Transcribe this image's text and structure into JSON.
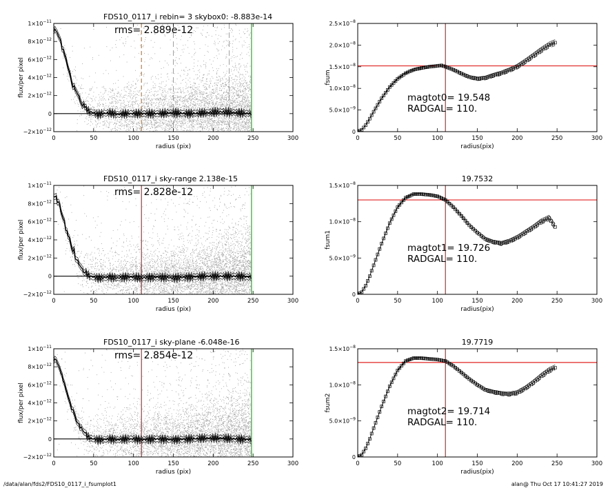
{
  "footer": {
    "left": "/data/alan/fds2/FDS10_0117_i_fsumplot1",
    "right": "alan@  Thu Oct 17 10:41:27 2019"
  },
  "colors": {
    "scatter": "#9a9a9a",
    "profile": "#000000",
    "radgal": "#e02020",
    "edge": "#22dd22",
    "dashed": "#e08a30"
  },
  "chart_data": [
    {
      "type": "scatter",
      "title": "FDS10_0117_i rebin= 3    skybox0: -8.883e-14",
      "annotation": "rms= 2.889e-12",
      "xlabel": "radius (pix)",
      "ylabel": "flux/per pixel",
      "xlim": [
        0,
        300
      ],
      "ylim": [
        -2e-12,
        1e-11
      ],
      "xticks": [
        "0",
        "50",
        "100",
        "150",
        "200",
        "250",
        "300"
      ],
      "yticks": [
        {
          "base": "−2×10",
          "exp": "−12",
          "value": -2e-12
        },
        {
          "base": "0",
          "exp": "",
          "value": 0
        },
        {
          "base": "2×10",
          "exp": "−12",
          "value": 2e-12
        },
        {
          "base": "4×10",
          "exp": "−12",
          "value": 4e-12
        },
        {
          "base": "6×10",
          "exp": "−12",
          "value": 6e-12
        },
        {
          "base": "8×10",
          "exp": "−12",
          "value": 8e-12
        },
        {
          "base": "1×10",
          "exp": "−11",
          "value": 1e-11
        }
      ],
      "vlines": [
        {
          "x": 110,
          "style": "dashed-orange"
        },
        {
          "x": 150,
          "style": "dashed-gray"
        },
        {
          "x": 220,
          "style": "dashed-gray"
        },
        {
          "x": 248,
          "style": "green"
        }
      ],
      "profile": {
        "x": [
          0,
          3,
          6,
          9,
          12,
          15,
          18,
          21,
          24,
          27,
          30,
          35,
          40,
          45,
          50,
          55,
          60,
          70,
          80,
          90,
          100,
          110,
          130,
          150,
          170,
          190,
          210,
          230,
          248
        ],
        "y": [
          9.2e-12,
          9.3e-12,
          8.6e-12,
          7.9e-12,
          6.9e-12,
          5.9e-12,
          5e-12,
          4.1e-12,
          3.3e-12,
          2.6e-12,
          2e-12,
          1.2e-12,
          6e-13,
          2e-13,
          1e-13,
          -1e-13,
          0,
          1e-13,
          -1e-13,
          0,
          0,
          0,
          0,
          1e-13,
          0,
          1e-13,
          2e-13,
          1e-13,
          0
        ]
      },
      "envelope_delta": 3e-13
    },
    {
      "type": "line",
      "title": "",
      "annotation_lines": [
        "magtot0=  19.548",
        "RADGAL=    110."
      ],
      "xlabel": "radius(pix)",
      "ylabel": "fsum",
      "xlim": [
        0,
        300
      ],
      "ylim": [
        0,
        2.5e-08
      ],
      "xticks": [
        "0",
        "50",
        "100",
        "150",
        "200",
        "250",
        "300"
      ],
      "yticks": [
        {
          "base": "0",
          "exp": "",
          "value": 0
        },
        {
          "base": "5.0×10",
          "exp": "−9",
          "value": 5e-09
        },
        {
          "base": "1.0×10",
          "exp": "−8",
          "value": 1e-08
        },
        {
          "base": "1.5×10",
          "exp": "−8",
          "value": 1.5e-08
        },
        {
          "base": "2.0×10",
          "exp": "−8",
          "value": 2e-08
        },
        {
          "base": "2.5×10",
          "exp": "−8",
          "value": 2.5e-08
        }
      ],
      "vline_x": 110,
      "hline_y": 1.52e-08,
      "series_x": [
        0,
        5,
        10,
        15,
        20,
        25,
        30,
        40,
        50,
        60,
        70,
        80,
        90,
        100,
        105,
        110,
        120,
        130,
        140,
        150,
        160,
        170,
        180,
        190,
        200,
        210,
        220,
        230,
        240,
        248
      ],
      "series_y": [
        0,
        4e-10,
        1.5e-09,
        3e-09,
        4.6e-09,
        6.2e-09,
        7.7e-09,
        1.03e-08,
        1.22e-08,
        1.35e-08,
        1.43e-08,
        1.47e-08,
        1.5e-08,
        1.52e-08,
        1.53e-08,
        1.5e-08,
        1.43e-08,
        1.34e-08,
        1.26e-08,
        1.22e-08,
        1.24e-08,
        1.3e-08,
        1.35e-08,
        1.42e-08,
        1.5e-08,
        1.62e-08,
        1.75e-08,
        1.88e-08,
        2e-08,
        2.06e-08
      ],
      "band_delta": 7e-10
    },
    {
      "type": "scatter",
      "title": "FDS10_0117_i sky-range  2.138e-15",
      "annotation": "rms= 2.828e-12",
      "xlabel": "radius (pix)",
      "ylabel": "flux/per pixel",
      "xlim": [
        0,
        300
      ],
      "ylim": [
        -2e-12,
        1e-11
      ],
      "xticks": [
        "0",
        "50",
        "100",
        "150",
        "200",
        "250",
        "300"
      ],
      "yticks": [
        {
          "base": "−2×10",
          "exp": "−12",
          "value": -2e-12
        },
        {
          "base": "0",
          "exp": "",
          "value": 0
        },
        {
          "base": "2×10",
          "exp": "−12",
          "value": 2e-12
        },
        {
          "base": "4×10",
          "exp": "−12",
          "value": 4e-12
        },
        {
          "base": "6×10",
          "exp": "−12",
          "value": 6e-12
        },
        {
          "base": "8×10",
          "exp": "−12",
          "value": 8e-12
        },
        {
          "base": "1×10",
          "exp": "−11",
          "value": 1e-11
        }
      ],
      "vlines": [
        {
          "x": 110,
          "style": "red"
        },
        {
          "x": 248,
          "style": "green"
        }
      ],
      "profile": {
        "x": [
          0,
          3,
          6,
          9,
          12,
          15,
          18,
          21,
          24,
          27,
          30,
          35,
          40,
          45,
          50,
          55,
          60,
          70,
          80,
          90,
          100,
          110,
          130,
          150,
          170,
          190,
          210,
          230,
          248
        ],
        "y": [
          8.6e-12,
          8.8e-12,
          8.1e-12,
          7.3e-12,
          6.4e-12,
          5.4e-12,
          4.5e-12,
          3.6e-12,
          2.9e-12,
          2.2e-12,
          1.6e-12,
          9e-13,
          4e-13,
          0,
          -1e-13,
          -2e-13,
          -2e-13,
          -1e-13,
          -2e-13,
          -1e-13,
          -1e-13,
          -2e-13,
          -1e-13,
          -2e-13,
          -1e-13,
          0,
          0,
          0,
          -1e-13
        ]
      },
      "envelope_delta": 3e-13
    },
    {
      "type": "line",
      "title": "19.7532",
      "annotation_lines": [
        "magtot1=  19.726",
        "RADGAL=    110."
      ],
      "xlabel": "radius(pix)",
      "ylabel": "fsum1",
      "xlim": [
        0,
        300
      ],
      "ylim": [
        0,
        1.5e-08
      ],
      "xticks": [
        "0",
        "50",
        "100",
        "150",
        "200",
        "250",
        "300"
      ],
      "yticks": [
        {
          "base": "0",
          "exp": "",
          "value": 0
        },
        {
          "base": "5.0×10",
          "exp": "−9",
          "value": 5e-09
        },
        {
          "base": "1.0×10",
          "exp": "−8",
          "value": 1e-08
        },
        {
          "base": "1.5×10",
          "exp": "−8",
          "value": 1.5e-08
        }
      ],
      "vline_x": 110,
      "hline_y": 1.3e-08,
      "series_x": [
        0,
        5,
        10,
        15,
        20,
        25,
        30,
        40,
        50,
        60,
        70,
        80,
        90,
        100,
        110,
        120,
        130,
        140,
        150,
        160,
        170,
        180,
        190,
        200,
        210,
        220,
        230,
        240,
        248
      ],
      "series_y": [
        0,
        3e-10,
        1.2e-09,
        2.5e-09,
        4e-09,
        5.5e-09,
        7e-09,
        9.8e-09,
        1.2e-08,
        1.33e-08,
        1.38e-08,
        1.38e-08,
        1.37e-08,
        1.35e-08,
        1.3e-08,
        1.2e-08,
        1.08e-08,
        9.5e-09,
        8.5e-09,
        7.6e-09,
        7.2e-09,
        7e-09,
        7.3e-09,
        7.8e-09,
        8.5e-09,
        9.2e-09,
        1e-08,
        1.05e-08,
        9.2e-09
      ],
      "band_delta": 4e-10
    },
    {
      "type": "scatter",
      "title": "FDS10_0117_i sky-plane -6.048e-16",
      "annotation": "rms= 2.854e-12",
      "xlabel": "radius (pix)",
      "ylabel": "flux/per pixel",
      "xlim": [
        0,
        300
      ],
      "ylim": [
        -2e-12,
        1e-11
      ],
      "xticks": [
        "0",
        "50",
        "100",
        "150",
        "200",
        "250",
        "300"
      ],
      "yticks": [
        {
          "base": "−2×10",
          "exp": "−12",
          "value": -2e-12
        },
        {
          "base": "0",
          "exp": "",
          "value": 0
        },
        {
          "base": "2×10",
          "exp": "−12",
          "value": 2e-12
        },
        {
          "base": "4×10",
          "exp": "−12",
          "value": 4e-12
        },
        {
          "base": "6×10",
          "exp": "−12",
          "value": 6e-12
        },
        {
          "base": "8×10",
          "exp": "−12",
          "value": 8e-12
        },
        {
          "base": "1×10",
          "exp": "−11",
          "value": 1e-11
        }
      ],
      "vlines": [
        {
          "x": 110,
          "style": "red"
        },
        {
          "x": 248,
          "style": "green"
        }
      ],
      "profile": {
        "x": [
          0,
          3,
          6,
          9,
          12,
          15,
          18,
          21,
          24,
          27,
          30,
          35,
          40,
          45,
          50,
          55,
          60,
          70,
          80,
          90,
          100,
          110,
          130,
          150,
          170,
          190,
          210,
          230,
          248
        ],
        "y": [
          8.7e-12,
          8.9e-12,
          8.2e-12,
          7.4e-12,
          6.5e-12,
          5.5e-12,
          4.6e-12,
          3.7e-12,
          3e-12,
          2.3e-12,
          1.7e-12,
          1e-12,
          5e-13,
          1e-13,
          0,
          -1e-13,
          -1e-13,
          0,
          -1e-13,
          0,
          0,
          -1e-13,
          0,
          -1e-13,
          0,
          1e-13,
          1e-13,
          0,
          -1e-13
        ]
      },
      "envelope_delta": 3e-13
    },
    {
      "type": "line",
      "title": "19.7719",
      "annotation_lines": [
        "magtot2=  19.714",
        "RADGAL=    110."
      ],
      "xlabel": "radius(pix)",
      "ylabel": "fsum2",
      "xlim": [
        0,
        300
      ],
      "ylim": [
        0,
        1.5e-08
      ],
      "xticks": [
        "0",
        "50",
        "100",
        "150",
        "200",
        "250",
        "300"
      ],
      "yticks": [
        {
          "base": "0",
          "exp": "",
          "value": 0
        },
        {
          "base": "5.0×10",
          "exp": "−9",
          "value": 5e-09
        },
        {
          "base": "1.0×10",
          "exp": "−8",
          "value": 1e-08
        },
        {
          "base": "1.5×10",
          "exp": "−8",
          "value": 1.5e-08
        }
      ],
      "vline_x": 110,
      "hline_y": 1.31e-08,
      "series_x": [
        0,
        5,
        10,
        15,
        20,
        25,
        30,
        40,
        50,
        60,
        70,
        80,
        90,
        100,
        110,
        120,
        130,
        140,
        150,
        160,
        170,
        180,
        190,
        200,
        210,
        220,
        230,
        240,
        248
      ],
      "series_y": [
        0,
        3e-10,
        1.2e-09,
        2.5e-09,
        4e-09,
        5.5e-09,
        7e-09,
        9.8e-09,
        1.2e-08,
        1.33e-08,
        1.37e-08,
        1.37e-08,
        1.36e-08,
        1.35e-08,
        1.33e-08,
        1.26e-08,
        1.17e-08,
        1.08e-08,
        1e-08,
        9.3e-09,
        9e-09,
        8.8e-09,
        8.7e-09,
        8.9e-09,
        9.5e-09,
        1.03e-08,
        1.12e-08,
        1.2e-08,
        1.24e-08
      ],
      "band_delta": 4e-10
    }
  ]
}
